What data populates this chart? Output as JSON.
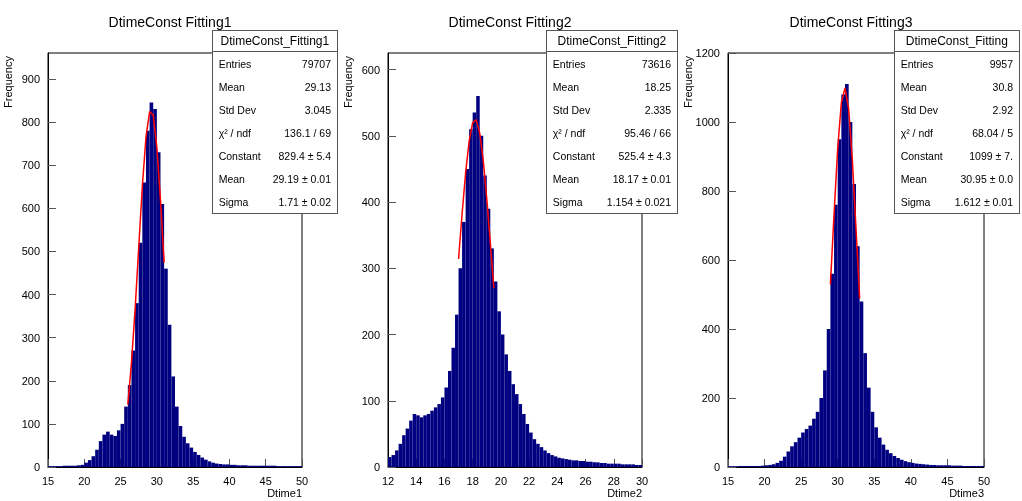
{
  "chart_data": [
    {
      "type": "histogram",
      "title": "DtimeConst Fitting1",
      "xlabel": "Dtime1",
      "ylabel": "Frequency",
      "color": "#000080",
      "bins": [
        15,
        15.5,
        16,
        16.5,
        17,
        17.5,
        18,
        18.5,
        19,
        19.5,
        20,
        20.5,
        21,
        21.5,
        22,
        22.5,
        23,
        23.5,
        24,
        24.5,
        25,
        25.5,
        26,
        26.5,
        27,
        27.5,
        28,
        28.5,
        29,
        29.5,
        30,
        30.5,
        31,
        31.5,
        32,
        32.5,
        33,
        33.5,
        34,
        34.5,
        35,
        35.5,
        36,
        36.5,
        37,
        37.5,
        38,
        38.5,
        39,
        39.5,
        40,
        40.5,
        41,
        41.5,
        42,
        42.5,
        43,
        43.5,
        44,
        44.5,
        45,
        45.5,
        46,
        46.5,
        47,
        47.5,
        48,
        48.5,
        49,
        49.5,
        50
      ],
      "values": [
        2,
        2,
        2,
        2,
        3,
        3,
        3,
        3,
        4,
        5,
        10,
        16,
        25,
        40,
        60,
        75,
        82,
        75,
        72,
        85,
        100,
        140,
        190,
        270,
        380,
        520,
        660,
        780,
        845,
        830,
        730,
        610,
        460,
        330,
        210,
        140,
        95,
        70,
        55,
        45,
        35,
        28,
        22,
        17,
        13,
        10,
        8,
        7,
        6,
        6,
        5,
        5,
        4,
        4,
        4,
        3,
        3,
        3,
        3,
        3,
        3,
        3,
        3,
        2,
        2,
        2,
        2,
        2,
        2,
        2
      ],
      "series": [
        {
          "type": "line",
          "color": "#ff0000",
          "marker": "none",
          "x": [
            26,
            26.5,
            27,
            27.5,
            28,
            28.5,
            29,
            29.5,
            30,
            30.5,
            31
          ],
          "values": [
            145,
            241,
            365,
            509,
            651,
            765,
            824,
            816,
            741,
            619,
            474
          ]
        }
      ],
      "xlim": [
        15,
        50
      ],
      "xticks": [
        15,
        20,
        25,
        30,
        35,
        40,
        45,
        50
      ],
      "ylim": [
        0,
        960
      ],
      "yticks": [
        0,
        100,
        200,
        300,
        400,
        500,
        600,
        700,
        800,
        900
      ],
      "annotations": [
        "DtimeConst_Fitting1",
        "Entries",
        "79707",
        "Mean",
        "29.13",
        "Std Dev",
        "3.045",
        "χ² / ndf",
        "136.1 / 69",
        "Constant",
        "829.4 ± 5.4",
        "Mean",
        "29.19 ± 0.01",
        "Sigma",
        "1.71 ± 0.02"
      ]
    },
    {
      "type": "histogram",
      "title": "DtimeConst Fitting2",
      "xlabel": "Dtime2",
      "ylabel": "Frequency",
      "color": "#000080",
      "bins": [
        12,
        12.25,
        12.5,
        12.75,
        13,
        13.25,
        13.5,
        13.75,
        14,
        14.25,
        14.5,
        14.75,
        15,
        15.25,
        15.5,
        15.75,
        16,
        16.25,
        16.5,
        16.75,
        17,
        17.25,
        17.5,
        17.75,
        18,
        18.25,
        18.5,
        18.75,
        19,
        19.25,
        19.5,
        19.75,
        20,
        20.25,
        20.5,
        20.75,
        21,
        21.25,
        21.5,
        21.75,
        22,
        22.25,
        22.5,
        22.75,
        23,
        23.25,
        23.5,
        23.75,
        24,
        24.25,
        24.5,
        24.75,
        25,
        25.25,
        25.5,
        25.75,
        26,
        26.25,
        26.5,
        26.75,
        27,
        27.25,
        27.5,
        27.75,
        28,
        28.25,
        28.5,
        28.75,
        29,
        29.25,
        29.5,
        29.75,
        30
      ],
      "values": [
        15,
        18,
        25,
        35,
        48,
        58,
        70,
        80,
        78,
        75,
        78,
        80,
        85,
        90,
        95,
        105,
        120,
        145,
        180,
        230,
        300,
        370,
        450,
        510,
        535,
        560,
        500,
        440,
        390,
        330,
        280,
        235,
        200,
        170,
        145,
        125,
        110,
        95,
        80,
        65,
        52,
        42,
        35,
        30,
        25,
        21,
        18,
        16,
        14,
        13,
        12,
        11,
        10,
        10,
        9,
        9,
        8,
        8,
        7,
        7,
        6,
        6,
        5,
        5,
        5,
        5,
        4,
        4,
        4,
        4,
        3,
        3
      ],
      "series": [
        {
          "type": "line",
          "color": "#ff0000",
          "marker": "none",
          "x": [
            17,
            17.25,
            17.5,
            17.75,
            18,
            18.25,
            18.5,
            18.75,
            19,
            19.25,
            19.5
          ],
          "values": [
            314,
            382,
            444,
            492,
            520,
            524,
            504,
            463,
            405,
            339,
            270
          ]
        }
      ],
      "xlim": [
        12,
        30
      ],
      "xticks": [
        12,
        14,
        16,
        18,
        20,
        22,
        24,
        26,
        28,
        30
      ],
      "ylim": [
        0,
        625
      ],
      "yticks": [
        0,
        100,
        200,
        300,
        400,
        500,
        600
      ],
      "annotations": [
        "DtimeConst_Fitting2",
        "Entries",
        "73616",
        "Mean",
        "18.25",
        "Std Dev",
        "2.335",
        "χ² / ndf",
        "95.46 / 66",
        "Constant",
        "525.4 ± 4.3",
        "Mean",
        "18.17 ± 0.01",
        "Sigma",
        "1.154 ± 0.021"
      ]
    },
    {
      "type": "histogram",
      "title": "DtimeConst Fitting3",
      "xlabel": "Dtime3",
      "ylabel": "Frequency",
      "color": "#000080",
      "bins": [
        15,
        15.5,
        16,
        16.5,
        17,
        17.5,
        18,
        18.5,
        19,
        19.5,
        20,
        20.5,
        21,
        21.5,
        22,
        22.5,
        23,
        23.5,
        24,
        24.5,
        25,
        25.5,
        26,
        26.5,
        27,
        27.5,
        28,
        28.5,
        29,
        29.5,
        30,
        30.5,
        31,
        31.5,
        32,
        32.5,
        33,
        33.5,
        34,
        34.5,
        35,
        35.5,
        36,
        36.5,
        37,
        37.5,
        38,
        38.5,
        39,
        39.5,
        40,
        40.5,
        41,
        41.5,
        42,
        42.5,
        43,
        43.5,
        44,
        44.5,
        45,
        45.5,
        46,
        46.5,
        47,
        47.5,
        48,
        48.5,
        49,
        49.5,
        50
      ],
      "values": [
        2,
        2,
        2,
        3,
        3,
        3,
        3,
        3,
        3,
        4,
        5,
        6,
        8,
        12,
        18,
        30,
        45,
        60,
        72,
        85,
        100,
        110,
        120,
        140,
        160,
        200,
        280,
        400,
        560,
        760,
        950,
        1080,
        1110,
        1000,
        820,
        640,
        480,
        330,
        230,
        160,
        115,
        85,
        65,
        50,
        40,
        32,
        26,
        21,
        17,
        14,
        12,
        10,
        9,
        8,
        7,
        6,
        6,
        5,
        5,
        5,
        5,
        4,
        4,
        4,
        3,
        3,
        3,
        3,
        3,
        3
      ],
      "series": [
        {
          "type": "line",
          "color": "#ff0000",
          "marker": "none",
          "x": [
            29,
            29.5,
            30,
            30.5,
            31,
            31.5,
            32,
            32.5,
            33
          ],
          "values": [
            529,
            733,
            924,
            1057,
            1098,
            1037,
            889,
            692,
            489
          ]
        }
      ],
      "xlim": [
        15,
        50
      ],
      "xticks": [
        15,
        20,
        25,
        30,
        35,
        40,
        45,
        50
      ],
      "ylim": [
        0,
        1200
      ],
      "yticks": [
        0,
        200,
        400,
        600,
        800,
        1000,
        1200
      ],
      "annotations": [
        "DtimeConst_Fitting",
        "Entries",
        "9957",
        "Mean",
        "30.8",
        "Std Dev",
        "2.92",
        "χ² / ndf",
        "68.04 / 5",
        "Constant",
        "1099 ± 7.",
        "Mean",
        "30.95 ± 0.0",
        "Sigma",
        "1.612 ± 0.01"
      ]
    }
  ]
}
